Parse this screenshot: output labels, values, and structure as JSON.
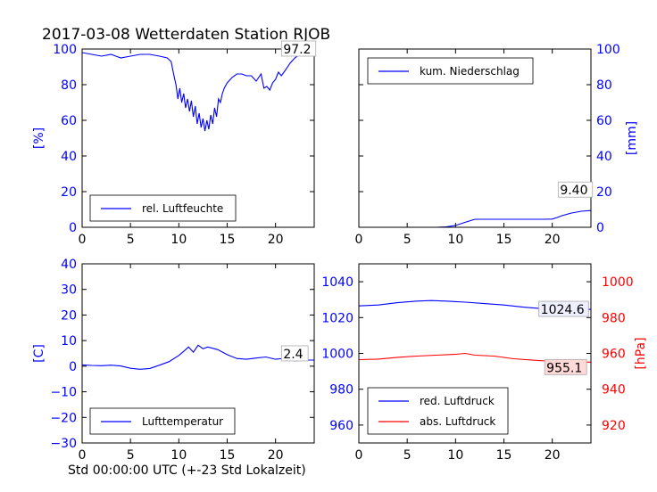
{
  "figure": {
    "title": "2017-03-08 Wetterdaten Station RJOB",
    "xlabel": "Std 00:00:00 UTC (+-23 Std Lokalzeit)"
  },
  "colors": {
    "blue": "#0000ff",
    "red": "#ff0000"
  },
  "chart_data": [
    {
      "type": "line",
      "panel": "top-left",
      "xlim": [
        0,
        24
      ],
      "xticks": [
        "0",
        "5",
        "10",
        "15",
        "20"
      ],
      "ylim": [
        0,
        100
      ],
      "yticks": [
        "0",
        "20",
        "40",
        "60",
        "80",
        "100"
      ],
      "ylabel": "[%]",
      "annotation": "97.2",
      "legend_position": "lower-center",
      "series": [
        {
          "name": "rel. Luftfeuchte",
          "color": "#0000ff",
          "x": [
            0,
            1,
            2,
            3,
            4,
            5,
            6,
            7,
            8,
            8.8,
            9.2,
            9.5,
            9.7,
            9.9,
            10.1,
            10.3,
            10.5,
            10.7,
            10.9,
            11.1,
            11.3,
            11.5,
            11.7,
            11.9,
            12.1,
            12.3,
            12.5,
            12.7,
            12.9,
            13.1,
            13.3,
            13.5,
            13.7,
            13.9,
            14.1,
            14.3,
            14.5,
            14.7,
            15,
            15.5,
            16,
            16.5,
            17,
            17.5,
            18,
            18.5,
            18.8,
            19.1,
            19.4,
            19.7,
            20,
            20.3,
            20.6,
            21,
            21.5,
            22,
            22.5,
            23,
            24
          ],
          "y": [
            98,
            97,
            96,
            97,
            95,
            96,
            97,
            97,
            96,
            95,
            93,
            85,
            80,
            72,
            78,
            70,
            75,
            67,
            72,
            65,
            71,
            62,
            68,
            58,
            64,
            56,
            61,
            54,
            60,
            55,
            63,
            58,
            67,
            62,
            72,
            70,
            75,
            78,
            81,
            84,
            86,
            86,
            85,
            85,
            82,
            86,
            78,
            79,
            77,
            81,
            83,
            87,
            85,
            88,
            92,
            95,
            97,
            97.2,
            97.2
          ]
        }
      ]
    },
    {
      "type": "line",
      "panel": "top-right",
      "xlim": [
        0,
        24
      ],
      "xticks": [
        "0",
        "5",
        "10",
        "15",
        "20"
      ],
      "ylim": [
        0,
        100
      ],
      "yticks": [
        "0",
        "20",
        "40",
        "60",
        "80",
        "100"
      ],
      "ylabel": "[mm]",
      "annotation": "9.40",
      "legend_position": "upper-left",
      "series": [
        {
          "name": "kum. Niederschlag",
          "color": "#0000ff",
          "x": [
            0,
            8,
            9,
            10,
            11,
            12,
            13,
            14,
            15,
            16,
            17,
            18,
            19,
            20,
            20.5,
            21,
            22,
            23,
            24
          ],
          "y": [
            0,
            0,
            0.2,
            1,
            2.8,
            4.5,
            4.5,
            4.5,
            4.5,
            4.5,
            4.5,
            4.5,
            4.5,
            4.6,
            5.5,
            6.5,
            8,
            9,
            9.4
          ]
        }
      ]
    },
    {
      "type": "line",
      "panel": "bottom-left",
      "xlim": [
        0,
        24
      ],
      "xticks": [
        "0",
        "5",
        "10",
        "15",
        "20"
      ],
      "ylim": [
        -30,
        40
      ],
      "yticks": [
        "−30",
        "−20",
        "−10",
        "0",
        "10",
        "20",
        "30",
        "40"
      ],
      "ylabel": "[C]",
      "annotation": "2.4",
      "legend_position": "lower-center",
      "series": [
        {
          "name": "Lufttemperatur",
          "color": "#0000ff",
          "x": [
            0,
            1,
            2,
            3,
            4,
            5,
            6,
            7,
            8,
            9,
            10,
            10.5,
            11,
            11.5,
            12,
            12.5,
            13,
            14,
            15,
            16,
            17,
            18,
            19,
            20,
            21,
            22,
            23,
            24
          ],
          "y": [
            0.5,
            0.3,
            0.2,
            0.4,
            0.1,
            -0.8,
            -1.2,
            -0.9,
            0.4,
            1.8,
            4.2,
            5.8,
            7.5,
            5.5,
            8.2,
            6.8,
            7.5,
            6.5,
            4.5,
            3,
            2.7,
            3.2,
            3.6,
            2.7,
            3.1,
            2.1,
            2.4,
            2.4
          ]
        }
      ]
    },
    {
      "type": "line",
      "panel": "bottom-right",
      "xlim": [
        0,
        24
      ],
      "xticks": [
        "0",
        "5",
        "10",
        "15",
        "20"
      ],
      "ylim": [
        950,
        1050
      ],
      "yticks": [
        "960",
        "980",
        "1000",
        "1020",
        "1040"
      ],
      "y2lim": [
        910,
        1010
      ],
      "y2ticks": [
        "920",
        "940",
        "960",
        "980",
        "1000"
      ],
      "y2label": "[hPa]",
      "annotations": [
        "1024.6",
        "955.1"
      ],
      "legend_position": "lower-left",
      "series": [
        {
          "name": "red. Luftdruck",
          "color": "#0000ff",
          "axis": "left",
          "x": [
            0,
            2,
            4,
            6,
            7.5,
            9,
            11,
            13,
            15,
            17,
            19,
            20,
            22,
            24
          ],
          "y": [
            1026.5,
            1027,
            1028.3,
            1029.2,
            1029.5,
            1029.2,
            1028.6,
            1027.8,
            1027,
            1025.8,
            1025,
            1024.6,
            1024.6,
            1024.6
          ]
        },
        {
          "name": "abs. Luftdruck",
          "color": "#ff0000",
          "axis": "right",
          "x": [
            0,
            2,
            4,
            6,
            8,
            10,
            11,
            12,
            14,
            16,
            18,
            20,
            22,
            24
          ],
          "y": [
            956.5,
            956.8,
            957.8,
            958.5,
            959,
            959.5,
            960,
            959,
            958.5,
            957,
            956.2,
            955.5,
            955.3,
            955.1
          ]
        }
      ]
    }
  ]
}
